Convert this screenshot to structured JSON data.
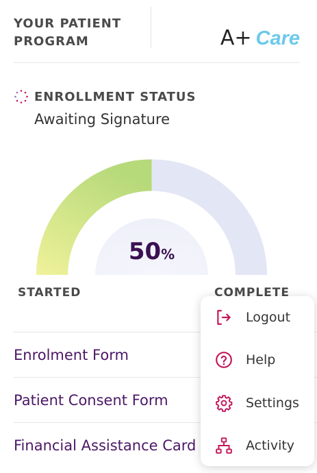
{
  "header": {
    "program_title": "YOUR PATIENT PROGRAM",
    "logo_prefix": "A+",
    "logo_suffix": "Care"
  },
  "enrollment": {
    "label": "ENROLLMENT STATUS",
    "value": "Awaiting Signature",
    "icon": "spinner-icon"
  },
  "progress": {
    "percent": 50,
    "value_text": "50",
    "unit": "%",
    "start_label": "STARTED",
    "end_label": "COMPLETE"
  },
  "forms": [
    {
      "label": "Enrolment Form"
    },
    {
      "label": "Patient Consent Form"
    },
    {
      "label": "Financial Assistance Card"
    }
  ],
  "menu": {
    "items": [
      {
        "label": "Logout",
        "icon": "logout-icon"
      },
      {
        "label": "Help",
        "icon": "help-icon"
      },
      {
        "label": "Settings",
        "icon": "settings-icon"
      },
      {
        "label": "Activity",
        "icon": "activity-icon"
      }
    ]
  },
  "colors": {
    "brand_purple": "#4b1766",
    "icon_accent": "#c2185b",
    "logo_blue": "#6cc9ea",
    "gauge_start": "#f0f29a",
    "gauge_end": "#b6d97a",
    "gauge_track": "#e3e6f4"
  }
}
